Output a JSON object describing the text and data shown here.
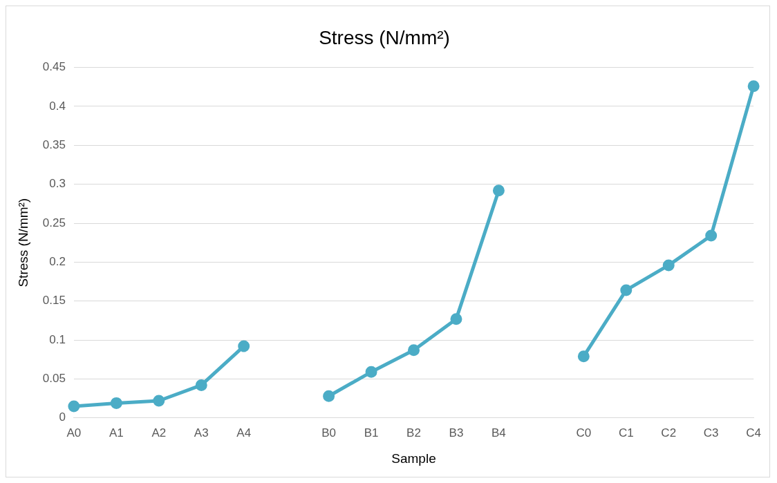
{
  "chart_data": {
    "type": "line",
    "title": "Stress (N/mm²)",
    "xlabel": "Sample",
    "ylabel": "Stress (N/mm²)",
    "categories": [
      "A0",
      "A1",
      "A2",
      "A3",
      "A4",
      null,
      "B0",
      "B1",
      "B2",
      "B3",
      "B4",
      null,
      "C0",
      "C1",
      "C2",
      "C3",
      "C4"
    ],
    "series": [
      {
        "color": "#4bacc6",
        "values": [
          0.015,
          0.019,
          0.022,
          0.042,
          0.092,
          null,
          0.028,
          0.059,
          0.087,
          0.127,
          0.292,
          null,
          0.079,
          0.164,
          0.196,
          0.234,
          0.426
        ]
      }
    ],
    "ylim": [
      0,
      0.45
    ],
    "yticks": [
      0,
      0.05,
      0.1,
      0.15,
      0.2,
      0.25,
      0.3,
      0.35,
      0.4,
      0.45
    ],
    "grid": "y",
    "legend": false,
    "marker": "circle",
    "line_style": "solid"
  }
}
